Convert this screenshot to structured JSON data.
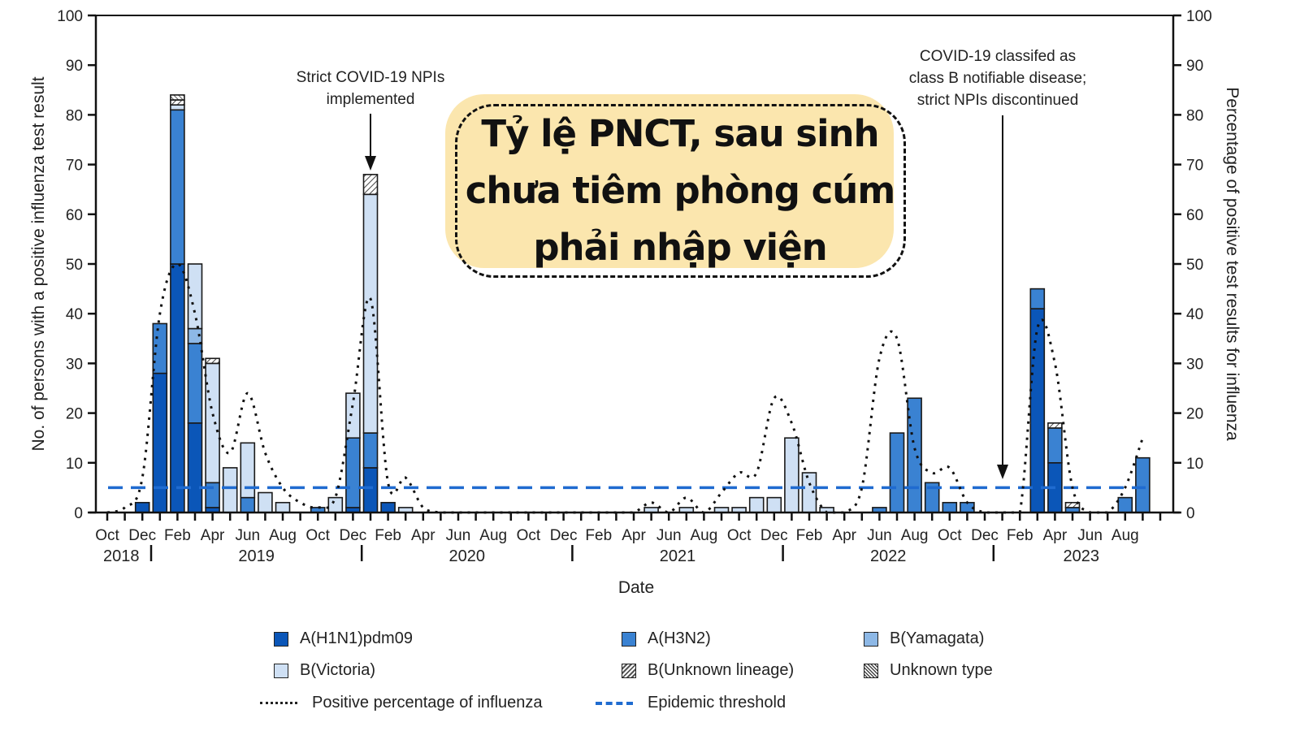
{
  "callout": {
    "lines": [
      "Tỷ lệ PNCT, sau sinh",
      "chưa tiêm phòng cúm",
      "phải nhập viện"
    ],
    "bg_color": "#fbe6ae"
  },
  "annotations": [
    {
      "text_lines": [
        "Strict COVID-19 NPIs",
        "implemented"
      ],
      "month_index": 16
    },
    {
      "text_lines": [
        "COVID-19 classifed as",
        "class B notifiable disease;",
        "strict NPIs discontinued"
      ],
      "month_index": 51
    }
  ],
  "colors": {
    "A_H1N1pdm09": "#0b56b8",
    "A_H3N2": "#3a82d2",
    "B_Yamagata": "#8db8e6",
    "B_Victoria": "#cfe0f4",
    "threshold": "#1f6bd0"
  },
  "chart_data": {
    "type": "bar",
    "title": "",
    "xlabel": "Date",
    "ylabel": "No. of persons with a positive influenza test result",
    "y2label": "Percentage of positive test results for influenza",
    "ylim": [
      0,
      100
    ],
    "y2lim": [
      0,
      100
    ],
    "yticks": [
      0,
      10,
      20,
      30,
      40,
      50,
      60,
      70,
      80,
      90,
      100
    ],
    "grid": false,
    "legend_position": "bottom",
    "x_tick_labels": [
      "Oct",
      "Dec",
      "Feb",
      "Apr",
      "Jun",
      "Aug",
      "Oct",
      "Dec",
      "Feb",
      "Apr",
      "Jun",
      "Aug",
      "Oct",
      "Dec",
      "Feb",
      "Apr",
      "Jun",
      "Aug",
      "Oct",
      "Dec",
      "Feb",
      "Apr",
      "Jun",
      "Aug",
      "Oct",
      "Dec",
      "Feb",
      "Apr",
      "Jun",
      "Aug"
    ],
    "years": [
      {
        "label": "2018",
        "month_index": 0.8
      },
      {
        "label": "2019",
        "month_index": 8.5
      },
      {
        "label": "2020",
        "month_index": 20.5
      },
      {
        "label": "2021",
        "month_index": 32.5
      },
      {
        "label": "2022",
        "month_index": 44.5
      },
      {
        "label": "2023",
        "month_index": 55.5
      }
    ],
    "year_dividers": [
      2.5,
      14.5,
      26.5,
      38.5,
      50.5
    ],
    "months": [
      "2018-10",
      "2018-11",
      "2018-12",
      "2019-01",
      "2019-02",
      "2019-03",
      "2019-04",
      "2019-05",
      "2019-06",
      "2019-07",
      "2019-08",
      "2019-09",
      "2019-10",
      "2019-11",
      "2019-12",
      "2020-01",
      "2020-02",
      "2020-03",
      "2020-04",
      "2020-05",
      "2020-06",
      "2020-07",
      "2020-08",
      "2020-09",
      "2020-10",
      "2020-11",
      "2020-12",
      "2021-01",
      "2021-02",
      "2021-03",
      "2021-04",
      "2021-05",
      "2021-06",
      "2021-07",
      "2021-08",
      "2021-09",
      "2021-10",
      "2021-11",
      "2021-12",
      "2022-01",
      "2022-02",
      "2022-03",
      "2022-04",
      "2022-05",
      "2022-06",
      "2022-07",
      "2022-08",
      "2022-09",
      "2022-10",
      "2022-11",
      "2022-12",
      "2023-01",
      "2023-02",
      "2023-03",
      "2023-04",
      "2023-05",
      "2023-06",
      "2023-07",
      "2023-08",
      "2023-09"
    ],
    "series": [
      {
        "name": "A(H1N1)pdm09",
        "pattern": "solid",
        "values": [
          0,
          0,
          2,
          28,
          50,
          18,
          1,
          0,
          0,
          0,
          0,
          0,
          0,
          0,
          1,
          9,
          2,
          0,
          0,
          0,
          0,
          0,
          0,
          0,
          0,
          0,
          0,
          0,
          0,
          0,
          0,
          0,
          0,
          0,
          0,
          0,
          0,
          0,
          0,
          0,
          0,
          0,
          0,
          0,
          0,
          0,
          0,
          0,
          0,
          0,
          0,
          0,
          0,
          41,
          10,
          0,
          0,
          0,
          0,
          0
        ]
      },
      {
        "name": "A(H3N2)",
        "pattern": "solid",
        "values": [
          0,
          0,
          0,
          10,
          31,
          16,
          5,
          0,
          3,
          0,
          0,
          0,
          1,
          0,
          14,
          7,
          0,
          0,
          0,
          0,
          0,
          0,
          0,
          0,
          0,
          0,
          0,
          0,
          0,
          0,
          0,
          0,
          0,
          0,
          0,
          0,
          0,
          0,
          0,
          0,
          0,
          0,
          0,
          0,
          1,
          16,
          23,
          6,
          2,
          2,
          0,
          0,
          0,
          4,
          7,
          1,
          0,
          0,
          3,
          11
        ]
      },
      {
        "name": "B(Yamagata)",
        "pattern": "solid",
        "values": [
          0,
          0,
          0,
          0,
          0,
          3,
          0,
          0,
          0,
          0,
          0,
          0,
          0,
          0,
          0,
          0,
          0,
          0,
          0,
          0,
          0,
          0,
          0,
          0,
          0,
          0,
          0,
          0,
          0,
          0,
          0,
          0,
          0,
          0,
          0,
          0,
          0,
          0,
          0,
          0,
          0,
          0,
          0,
          0,
          0,
          0,
          0,
          0,
          0,
          0,
          0,
          0,
          0,
          0,
          0,
          0,
          0,
          0,
          0,
          0
        ]
      },
      {
        "name": "B(Victoria)",
        "pattern": "solid",
        "values": [
          0,
          0,
          0,
          0,
          1,
          13,
          24,
          9,
          11,
          4,
          2,
          0,
          0,
          3,
          9,
          48,
          0,
          1,
          0,
          0,
          0,
          0,
          0,
          0,
          0,
          0,
          0,
          0,
          0,
          0,
          0,
          1,
          0,
          1,
          0,
          1,
          1,
          3,
          3,
          15,
          8,
          1,
          0,
          0,
          0,
          0,
          0,
          0,
          0,
          0,
          0,
          0,
          0,
          0,
          0,
          0,
          0,
          0,
          0,
          0
        ]
      },
      {
        "name": "B(Unknown lineage)",
        "pattern": "hatch",
        "values": [
          0,
          0,
          0,
          0,
          1,
          0,
          1,
          0,
          0,
          0,
          0,
          0,
          0,
          0,
          0,
          4,
          0,
          0,
          0,
          0,
          0,
          0,
          0,
          0,
          0,
          0,
          0,
          0,
          0,
          0,
          0,
          0,
          0,
          0,
          0,
          0,
          0,
          0,
          0,
          0,
          0,
          0,
          0,
          0,
          0,
          0,
          0,
          0,
          0,
          0,
          0,
          0,
          0,
          0,
          1,
          1,
          0,
          0,
          0,
          0
        ]
      },
      {
        "name": "Unknown type",
        "pattern": "hatch-reverse",
        "values": [
          0,
          0,
          0,
          0,
          1,
          0,
          0,
          0,
          0,
          0,
          0,
          0,
          0,
          0,
          0,
          0,
          0,
          0,
          0,
          0,
          0,
          0,
          0,
          0,
          0,
          0,
          0,
          0,
          0,
          0,
          0,
          0,
          0,
          0,
          0,
          0,
          0,
          0,
          0,
          0,
          0,
          0,
          0,
          0,
          0,
          0,
          0,
          0,
          0,
          0,
          0,
          0,
          0,
          0,
          0,
          0,
          0,
          0,
          0,
          0
        ]
      }
    ],
    "line_series": [
      {
        "name": "Positive percentage of influenza",
        "axis": "right",
        "style": "dotted",
        "values": [
          0,
          1,
          7,
          40,
          50,
          40,
          20,
          12,
          24,
          12,
          5,
          2,
          1,
          3,
          22,
          43,
          6,
          7,
          1,
          0,
          0,
          0,
          0,
          0,
          0,
          0,
          0,
          0,
          0,
          0,
          0,
          2,
          0,
          3,
          0,
          4,
          8,
          8,
          23,
          18,
          6,
          0,
          0,
          5,
          31,
          35,
          13,
          8,
          9,
          2,
          0,
          0,
          0,
          37,
          30,
          5,
          0,
          0,
          5,
          15
        ]
      },
      {
        "name": "Epidemic threshold",
        "axis": "right",
        "style": "dashed",
        "value": 5
      }
    ]
  },
  "legend": {
    "items": [
      {
        "label": "A(H1N1)pdm09",
        "type": "swatch"
      },
      {
        "label": "A(H3N2)",
        "type": "swatch"
      },
      {
        "label": "B(Yamagata)",
        "type": "swatch"
      },
      {
        "label": "B(Victoria)",
        "type": "swatch"
      },
      {
        "label": "B(Unknown lineage)",
        "type": "hatch"
      },
      {
        "label": "Unknown type",
        "type": "hatch-reverse"
      },
      {
        "label": "Positive percentage of influenza",
        "type": "dotted-line"
      },
      {
        "label": "Epidemic  threshold",
        "type": "dashed-line"
      }
    ]
  }
}
